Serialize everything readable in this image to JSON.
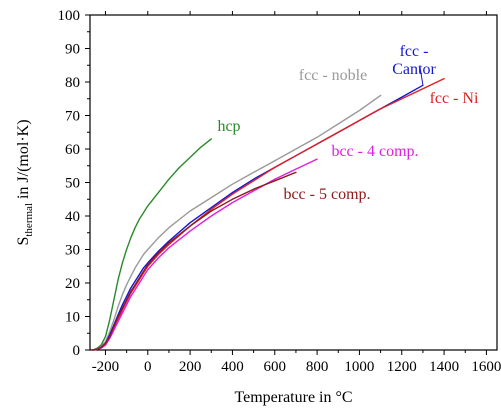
{
  "chart_data": {
    "type": "line",
    "title": "",
    "xlabel": "Temperature in °C",
    "ylabel_main": "S",
    "ylabel_sub": "thermal",
    "ylabel_rest": " in J/(mol·K)",
    "xlim": [
      -273,
      1650
    ],
    "ylim": [
      0,
      100
    ],
    "x_ticks": [
      -200,
      0,
      200,
      400,
      600,
      800,
      1000,
      1200,
      1400,
      1600
    ],
    "x_tick_labels": [
      "-200",
      "0",
      "200",
      "400",
      "600",
      "800",
      "1000",
      "1200",
      "1400",
      "1600"
    ],
    "y_ticks": [
      0,
      10,
      20,
      30,
      40,
      50,
      60,
      70,
      80,
      90,
      100
    ],
    "y_tick_labels": [
      "0",
      "10",
      "20",
      "30",
      "40",
      "50",
      "60",
      "70",
      "80",
      "90",
      "100"
    ],
    "grid": false,
    "legend": "none",
    "series": [
      {
        "name": "hcp",
        "label_lines": [
          "hcp"
        ],
        "color": "#2a8a2a",
        "x": [
          -260,
          -240,
          -220,
          -200,
          -180,
          -160,
          -140,
          -120,
          -100,
          -80,
          -60,
          -40,
          -20,
          0,
          50,
          100,
          150,
          200,
          250,
          300
        ],
        "y": [
          0,
          0.5,
          1.5,
          4,
          9,
          15,
          21,
          26,
          30,
          33.5,
          36.5,
          39,
          41,
          43,
          47,
          51,
          54.5,
          57.5,
          60.5,
          63
        ]
      },
      {
        "name": "fcc - noble",
        "label_lines": [
          "fcc - noble"
        ],
        "color": "#9a9a9a",
        "x": [
          -260,
          -240,
          -220,
          -200,
          -180,
          -160,
          -140,
          -120,
          -100,
          -80,
          -60,
          -40,
          -20,
          0,
          50,
          100,
          200,
          300,
          400,
          500,
          600,
          700,
          800,
          900,
          1000,
          1100
        ],
        "y": [
          0,
          0.3,
          1,
          2.5,
          5.5,
          9,
          13,
          16.5,
          19.5,
          22,
          24.5,
          26.5,
          28.5,
          30,
          33.5,
          36.5,
          41.5,
          45.5,
          49.5,
          53,
          56.5,
          60,
          63.5,
          67.5,
          71.5,
          76
        ]
      },
      {
        "name": "fcc - Cantor",
        "label_lines": [
          "fcc -",
          "Cantor"
        ],
        "color": "#1515d8",
        "x": [
          -260,
          -240,
          -220,
          -200,
          -180,
          -160,
          -140,
          -120,
          -100,
          -80,
          -60,
          -40,
          -20,
          0,
          50,
          100,
          200,
          300,
          400,
          500,
          600,
          700,
          800,
          900,
          1000,
          1100,
          1200,
          1300
        ],
        "y": [
          0,
          0.2,
          0.8,
          2,
          4.5,
          7.5,
          10.5,
          13.5,
          16,
          18.5,
          20.5,
          22.5,
          24.5,
          26,
          29.5,
          32.5,
          38,
          42.5,
          47,
          51,
          54.5,
          58,
          61.5,
          65,
          68.5,
          72,
          75.5,
          79
        ]
      },
      {
        "name": "fcc - Ni",
        "label_lines": [
          "fcc - Ni"
        ],
        "color": "#e02020",
        "x": [
          -260,
          -240,
          -220,
          -200,
          -180,
          -160,
          -140,
          -120,
          -100,
          -80,
          -60,
          -40,
          -20,
          0,
          50,
          100,
          200,
          300,
          400,
          500,
          600,
          700,
          800,
          900,
          1000,
          1100,
          1200,
          1300,
          1400
        ],
        "y": [
          0,
          0.2,
          0.6,
          1.5,
          3.5,
          6,
          9,
          12,
          14.5,
          17,
          19,
          21,
          23,
          25,
          28.5,
          31.5,
          37,
          42,
          46.5,
          50.5,
          54.5,
          58,
          61.5,
          65,
          68.5,
          72,
          75,
          78,
          81
        ]
      },
      {
        "name": "bcc - 4 comp.",
        "label_lines": [
          "bcc - 4 comp."
        ],
        "color": "#e020e0",
        "x": [
          -260,
          -240,
          -220,
          -200,
          -180,
          -160,
          -140,
          -120,
          -100,
          -80,
          -60,
          -40,
          -20,
          0,
          50,
          100,
          200,
          300,
          400,
          500,
          600,
          700,
          800
        ],
        "y": [
          0,
          0.2,
          0.6,
          1.5,
          3.5,
          6,
          8.5,
          11,
          13.5,
          16,
          18,
          20,
          22,
          24,
          27.5,
          30.5,
          35.5,
          40,
          44,
          47.5,
          51,
          54,
          57
        ]
      },
      {
        "name": "bcc - 5 comp.",
        "label_lines": [
          "bcc - 5 comp."
        ],
        "color": "#8b1a1a",
        "x": [
          -260,
          -240,
          -220,
          -200,
          -180,
          -160,
          -140,
          -120,
          -100,
          -80,
          -60,
          -40,
          -20,
          0,
          50,
          100,
          200,
          300,
          400,
          500,
          600,
          700
        ],
        "y": [
          0,
          0.2,
          0.8,
          2,
          4,
          7,
          10,
          12.5,
          15,
          17.5,
          19.5,
          21.5,
          23.5,
          25.5,
          29,
          32,
          37,
          41.5,
          45,
          48,
          50.5,
          53
        ]
      }
    ]
  }
}
